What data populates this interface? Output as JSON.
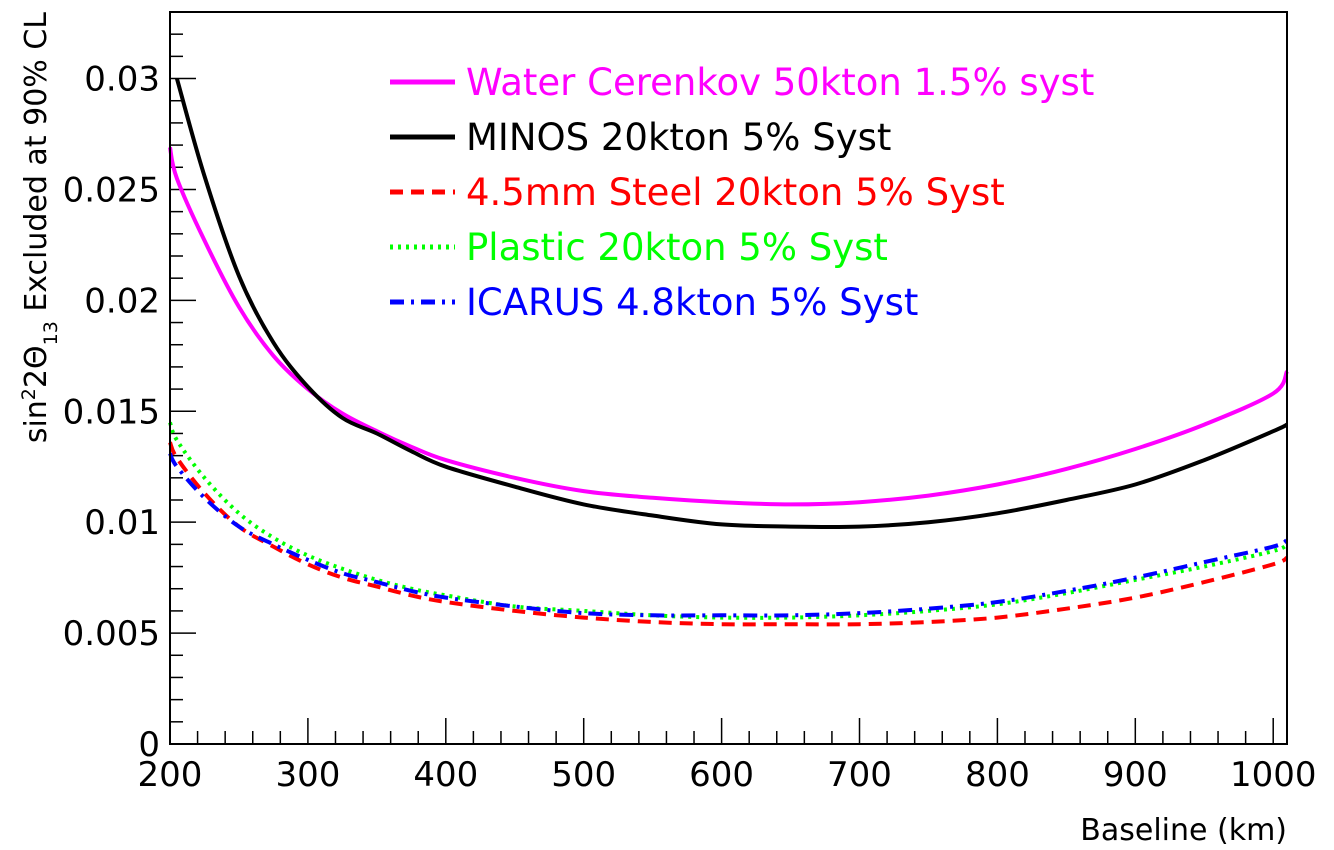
{
  "chart_data": {
    "type": "line",
    "title": "",
    "xlabel": "Baseline (km)",
    "ylabel": "sin²2Θ₁₃ Excluded at 90% CL",
    "ylabel_parts": {
      "pre": "sin",
      "sup": "2",
      "mid": "2Θ",
      "sub": "13",
      "post": " Excluded at 90% CL"
    },
    "xlim": [
      200,
      1010
    ],
    "ylim": [
      0,
      0.033
    ],
    "x_ticks": [
      200,
      300,
      400,
      500,
      600,
      700,
      800,
      900,
      1000
    ],
    "x_tick_labels": [
      "200",
      "300",
      "400",
      "500",
      "600",
      "700",
      "800",
      "900",
      "1000"
    ],
    "y_ticks": [
      0,
      0.005,
      0.01,
      0.015,
      0.02,
      0.025,
      0.03
    ],
    "y_tick_labels": [
      "0",
      "0.005",
      "0.01",
      "0.015",
      "0.02",
      "0.025",
      "0.03"
    ],
    "grid": false,
    "legend_position": "top-right",
    "x": [
      200,
      205,
      225,
      250,
      275,
      300,
      325,
      350,
      375,
      400,
      450,
      500,
      550,
      600,
      650,
      700,
      750,
      800,
      850,
      900,
      950,
      1000,
      1010
    ],
    "series": [
      {
        "name": "Water Cerenkov 50kton 1.5% syst",
        "color": "#ff00ff",
        "style": "solid",
        "values": [
          0.0269,
          0.0255,
          0.0227,
          0.0197,
          0.0175,
          0.016,
          0.0149,
          0.0141,
          0.0134,
          0.0128,
          0.012,
          0.0114,
          0.0111,
          0.0109,
          0.0108,
          0.0109,
          0.0112,
          0.0117,
          0.0124,
          0.0133,
          0.0144,
          0.0158,
          0.0168
        ]
      },
      {
        "name": "MINOS 20kton 5% Syst",
        "color": "#000000",
        "style": "solid",
        "values": [
          null,
          0.03,
          0.0256,
          0.0211,
          0.0181,
          0.0161,
          0.0147,
          0.014,
          0.0132,
          0.0125,
          0.0116,
          0.0108,
          0.0103,
          0.0099,
          0.0098,
          0.0098,
          0.01,
          0.0104,
          0.011,
          0.0117,
          0.0128,
          0.0141,
          0.0144
        ]
      },
      {
        "name": "4.5mm Steel 20kton 5% Syst",
        "color": "#ff0000",
        "style": "dashed",
        "values": [
          0.0136,
          0.0129,
          0.0113,
          0.0098,
          0.0089,
          0.0081,
          0.0075,
          0.0071,
          0.0067,
          0.0064,
          0.006,
          0.0057,
          0.0055,
          0.0054,
          0.0054,
          0.0054,
          0.0055,
          0.0057,
          0.0061,
          0.0066,
          0.0073,
          0.0081,
          0.0084
        ]
      },
      {
        "name": "Plastic 20kton 5% Syst",
        "color": "#00ff00",
        "style": "dotted",
        "values": [
          0.0145,
          0.0137,
          0.012,
          0.0104,
          0.0093,
          0.0085,
          0.0079,
          0.0074,
          0.007,
          0.0067,
          0.0062,
          0.006,
          0.0058,
          0.0057,
          0.0057,
          0.0058,
          0.006,
          0.0063,
          0.0068,
          0.0074,
          0.008,
          0.0087,
          0.009
        ]
      },
      {
        "name": "ICARUS 4.8kton 5% Syst",
        "color": "#0000ff",
        "style": "dashdot",
        "values": [
          0.0131,
          0.0125,
          0.0111,
          0.0098,
          0.009,
          0.0083,
          0.0077,
          0.0073,
          0.0069,
          0.0066,
          0.0062,
          0.0059,
          0.0058,
          0.0058,
          0.0058,
          0.0059,
          0.0061,
          0.0064,
          0.0069,
          0.0075,
          0.0082,
          0.0089,
          0.0092
        ]
      }
    ]
  }
}
